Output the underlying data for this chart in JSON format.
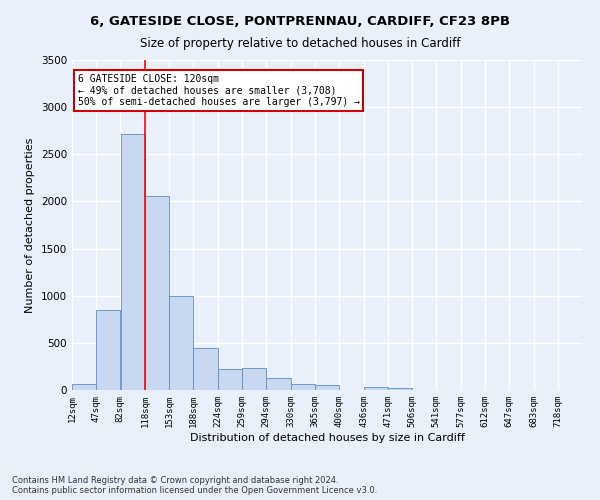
{
  "title_line1": "6, GATESIDE CLOSE, PONTPRENNAU, CARDIFF, CF23 8PB",
  "title_line2": "Size of property relative to detached houses in Cardiff",
  "xlabel": "Distribution of detached houses by size in Cardiff",
  "ylabel": "Number of detached properties",
  "footnote1": "Contains HM Land Registry data © Crown copyright and database right 2024.",
  "footnote2": "Contains public sector information licensed under the Open Government Licence v3.0.",
  "annotation_title": "6 GATESIDE CLOSE: 120sqm",
  "annotation_line2": "← 49% of detached houses are smaller (3,708)",
  "annotation_line3": "50% of semi-detached houses are larger (3,797) →",
  "bar_color": "#c8d8f0",
  "bar_edge_color": "#5b8ec4",
  "redline_x": 118,
  "categories": [
    "12sqm",
    "47sqm",
    "82sqm",
    "118sqm",
    "153sqm",
    "188sqm",
    "224sqm",
    "259sqm",
    "294sqm",
    "330sqm",
    "365sqm",
    "400sqm",
    "436sqm",
    "471sqm",
    "506sqm",
    "541sqm",
    "577sqm",
    "612sqm",
    "647sqm",
    "683sqm",
    "718sqm"
  ],
  "bin_edges": [
    12,
    47,
    82,
    118,
    153,
    188,
    224,
    259,
    294,
    330,
    365,
    400,
    436,
    471,
    506,
    541,
    577,
    612,
    647,
    683,
    718,
    753
  ],
  "values": [
    60,
    850,
    2720,
    2060,
    1000,
    450,
    225,
    230,
    130,
    60,
    50,
    0,
    30,
    20,
    0,
    0,
    0,
    0,
    0,
    0,
    0
  ],
  "ylim": [
    0,
    3500
  ],
  "yticks": [
    0,
    500,
    1000,
    1500,
    2000,
    2500,
    3000,
    3500
  ],
  "background_color": "#eaf0fb",
  "plot_bg_color": "#eaf0fb",
  "grid_color": "#ffffff",
  "title_fontsize": 9.5,
  "subtitle_fontsize": 8.5,
  "annotation_box_color": "#ffffff",
  "annotation_box_edge": "#cc0000"
}
